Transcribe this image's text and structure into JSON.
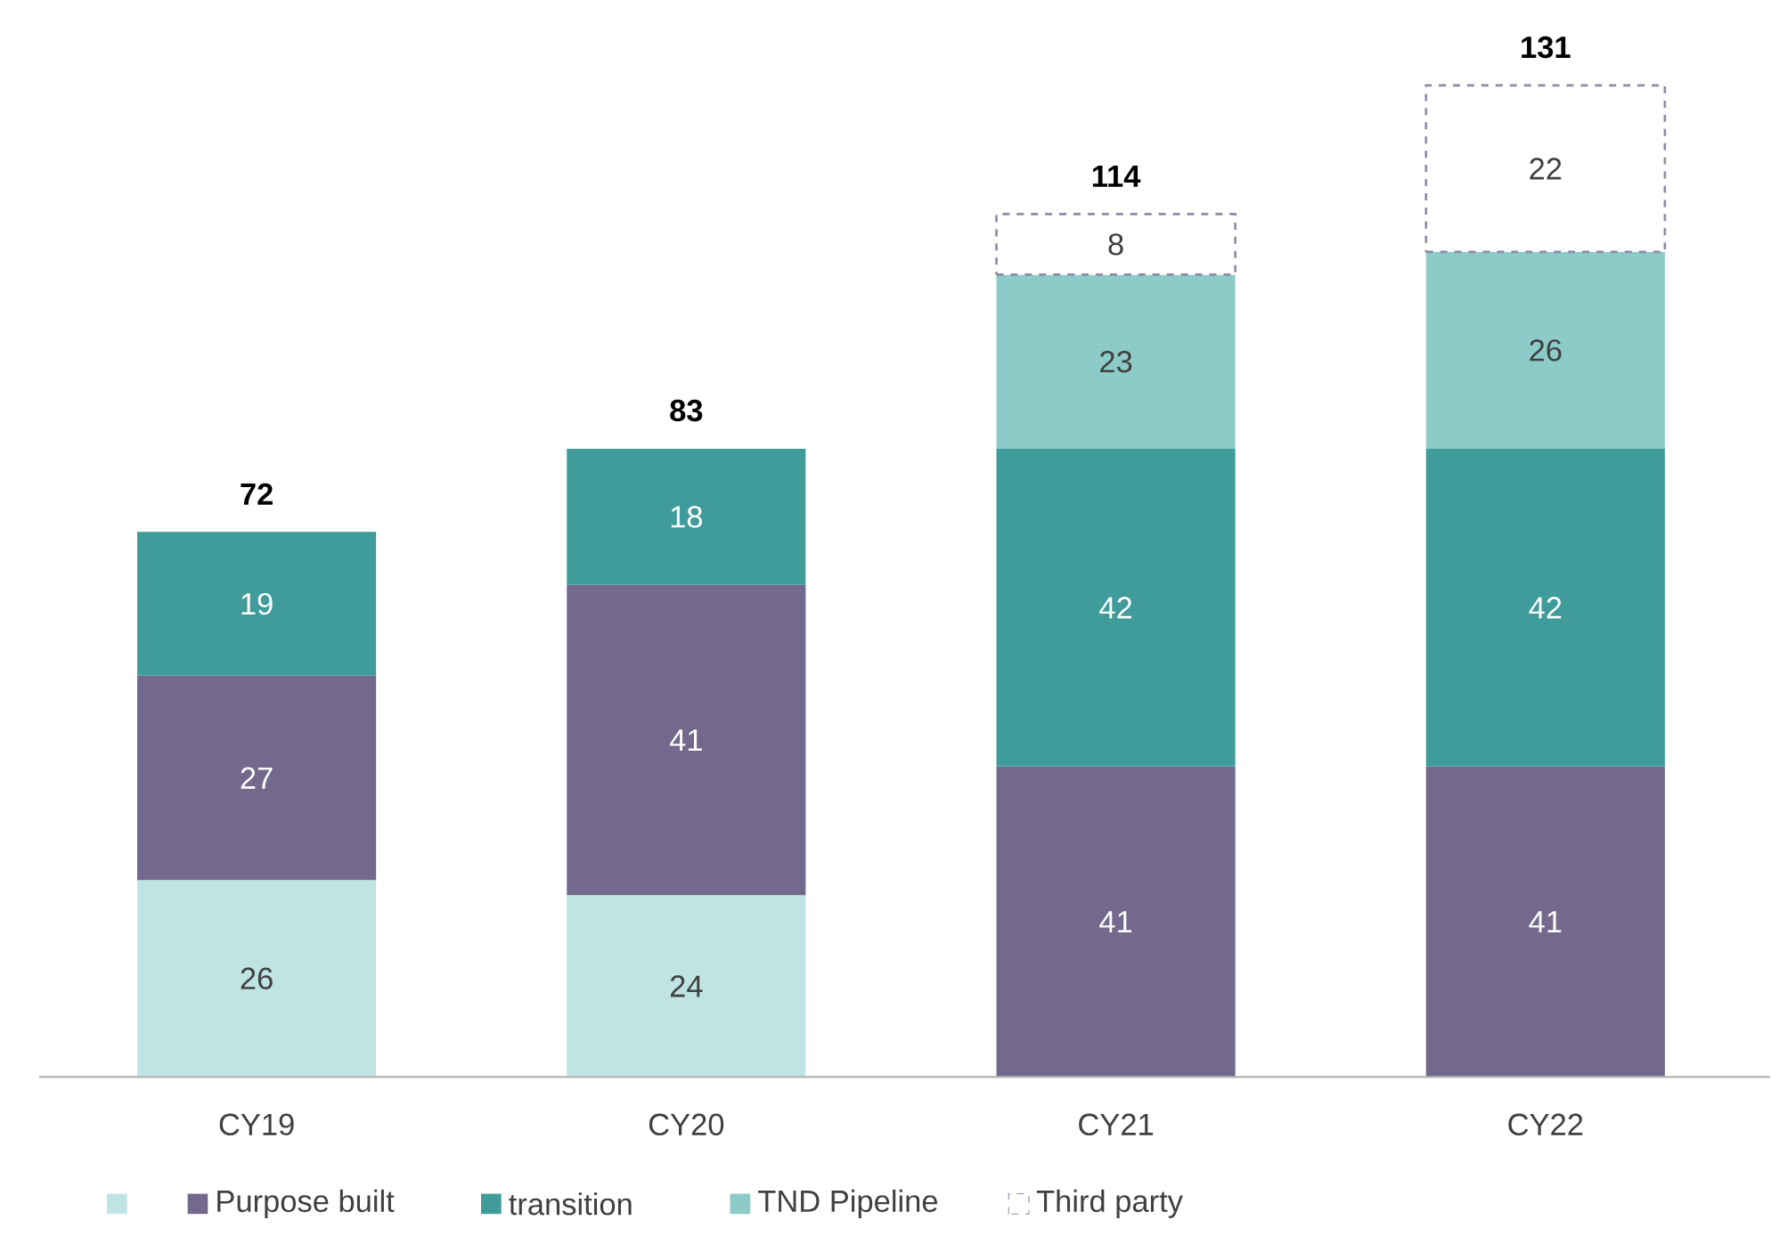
{
  "chart_data": {
    "type": "bar",
    "stacked": true,
    "data_labels": true,
    "legend": "bottom",
    "categories": [
      "CY19",
      "CY20",
      "CY21",
      "CY22"
    ],
    "series": [
      {
        "color": "#c0e4e4",
        "values": [
          26,
          24,
          null,
          null
        ]
      },
      {
        "name": "Purpose built",
        "color": "#72698c",
        "values": [
          27,
          41,
          41,
          41
        ]
      },
      {
        "name": "transition",
        "color": "#3f9c9a",
        "values": [
          19,
          18,
          42,
          42
        ]
      },
      {
        "name": "TND Pipeline",
        "color": "#8ccbc8",
        "values": [
          null,
          null,
          23,
          26
        ]
      },
      {
        "name": "Third party",
        "color": "#ffffff",
        "line_style": "dashed",
        "values": [
          null,
          null,
          8,
          22
        ]
      }
    ],
    "totals": [
      "72",
      "83",
      "114",
      "131"
    ]
  }
}
